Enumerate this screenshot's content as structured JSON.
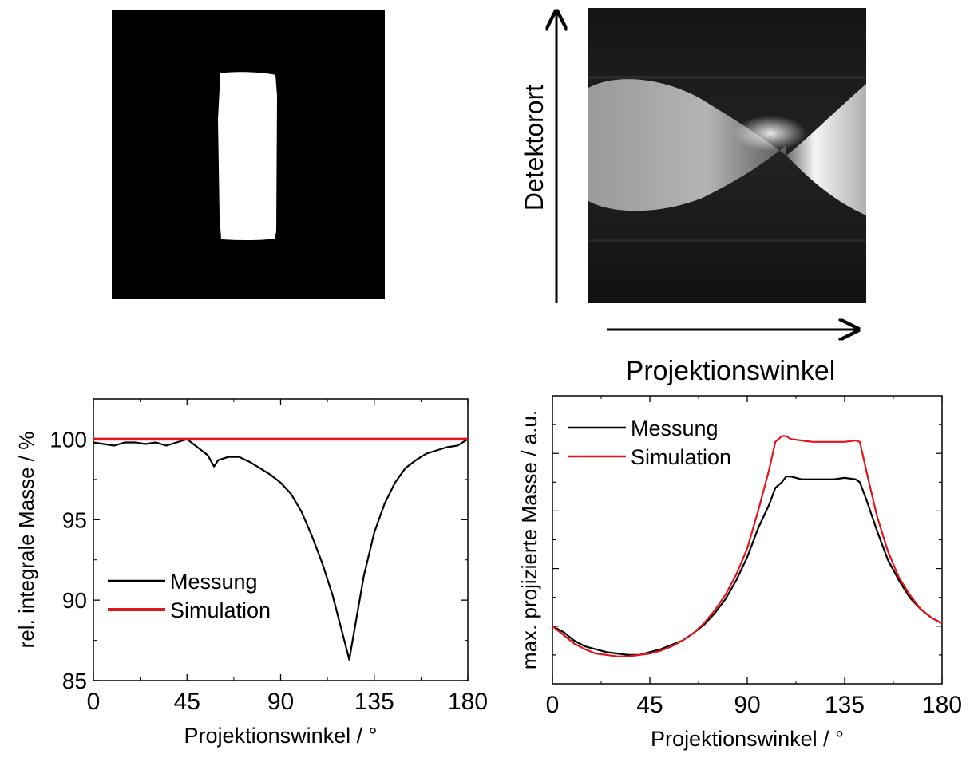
{
  "images": {
    "phantom": {
      "description_icon": "phantom-image"
    },
    "sinogram": {
      "y_axis_label": "Detektorort",
      "x_axis_label": "Projektionswinkel"
    }
  },
  "chart_data": [
    {
      "type": "line",
      "xlabel": "Projektionswinkel / °",
      "ylabel": "rel. integrale Masse / %",
      "xlim": [
        0,
        180
      ],
      "ylim": [
        85,
        102.5
      ],
      "xticks": [
        0,
        45,
        90,
        135,
        180
      ],
      "yticks": [
        85,
        90,
        95,
        100
      ],
      "legend_position": "lower-left",
      "series": [
        {
          "name": "Messung",
          "color": "#000000",
          "x": [
            0,
            5,
            10,
            15,
            20,
            25,
            30,
            35,
            40,
            45,
            50,
            55,
            58,
            60,
            65,
            70,
            75,
            80,
            85,
            90,
            95,
            100,
            105,
            110,
            115,
            120,
            123,
            125,
            130,
            135,
            140,
            145,
            150,
            155,
            160,
            165,
            170,
            175,
            180
          ],
          "values": [
            99.8,
            99.7,
            99.6,
            99.8,
            99.8,
            99.7,
            99.8,
            99.6,
            99.8,
            100.0,
            99.5,
            99.0,
            98.3,
            98.7,
            98.9,
            98.9,
            98.6,
            98.2,
            97.8,
            97.3,
            96.6,
            95.5,
            94.0,
            92.3,
            90.3,
            87.8,
            86.3,
            87.8,
            91.5,
            94.2,
            96.0,
            97.3,
            98.2,
            98.7,
            99.1,
            99.3,
            99.5,
            99.6,
            100.0
          ]
        },
        {
          "name": "Simulation",
          "color": "#e0161b",
          "x": [
            0,
            180
          ],
          "values": [
            100.0,
            100.0
          ]
        }
      ]
    },
    {
      "type": "line",
      "xlabel": "Projektionswinkel / °",
      "ylabel": "max. projizierte Masse / a.u.",
      "xlim": [
        0,
        180
      ],
      "ylim": [
        0,
        1
      ],
      "xticks": [
        0,
        45,
        90,
        135,
        180
      ],
      "ytick_labels_shown": false,
      "legend_position": "top-left",
      "series": [
        {
          "name": "Messung",
          "color": "#000000",
          "x": [
            0,
            5,
            10,
            15,
            20,
            25,
            30,
            35,
            40,
            45,
            50,
            55,
            60,
            65,
            70,
            75,
            80,
            85,
            90,
            95,
            100,
            103,
            106,
            108,
            110,
            115,
            120,
            125,
            130,
            135,
            140,
            142,
            145,
            150,
            155,
            160,
            165,
            170,
            175,
            180
          ],
          "values": [
            0.2,
            0.18,
            0.15,
            0.13,
            0.12,
            0.11,
            0.105,
            0.1,
            0.1,
            0.11,
            0.12,
            0.135,
            0.15,
            0.175,
            0.205,
            0.245,
            0.295,
            0.36,
            0.44,
            0.54,
            0.62,
            0.68,
            0.7,
            0.72,
            0.72,
            0.71,
            0.71,
            0.71,
            0.71,
            0.715,
            0.71,
            0.7,
            0.64,
            0.53,
            0.43,
            0.36,
            0.3,
            0.26,
            0.23,
            0.21
          ]
        },
        {
          "name": "Simulation",
          "color": "#e0161b",
          "x": [
            0,
            5,
            10,
            15,
            20,
            25,
            30,
            35,
            40,
            45,
            50,
            55,
            60,
            65,
            70,
            75,
            80,
            85,
            90,
            95,
            100,
            103,
            106,
            108,
            110,
            115,
            120,
            125,
            130,
            135,
            140,
            142,
            145,
            150,
            155,
            160,
            165,
            170,
            175,
            180
          ],
          "values": [
            0.2,
            0.17,
            0.14,
            0.12,
            0.105,
            0.1,
            0.095,
            0.095,
            0.1,
            0.105,
            0.115,
            0.13,
            0.15,
            0.175,
            0.21,
            0.255,
            0.31,
            0.38,
            0.47,
            0.6,
            0.74,
            0.84,
            0.86,
            0.86,
            0.85,
            0.845,
            0.84,
            0.84,
            0.84,
            0.84,
            0.845,
            0.84,
            0.74,
            0.58,
            0.46,
            0.37,
            0.31,
            0.26,
            0.23,
            0.21
          ]
        }
      ]
    }
  ]
}
